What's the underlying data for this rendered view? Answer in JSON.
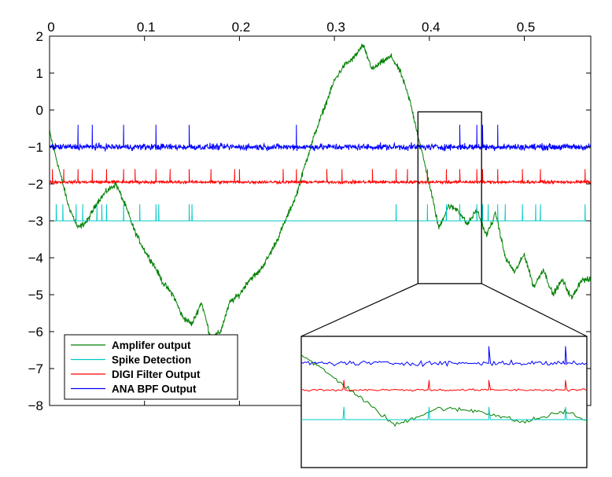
{
  "chart_data": {
    "type": "line",
    "title": "",
    "xlabel": "",
    "ylabel": "",
    "xlim": [
      0,
      0.57
    ],
    "ylim": [
      -8,
      2
    ],
    "x_ticks": [
      0,
      0.1,
      0.2,
      0.3,
      0.4,
      0.5
    ],
    "x_tick_labels": [
      "0",
      "0.1",
      "0.2",
      "0.3",
      "0.4",
      "0.5"
    ],
    "y_ticks": [
      2,
      1,
      0,
      -1,
      -2,
      -3,
      -4,
      -5,
      -6,
      -7,
      -8
    ],
    "y_tick_labels": [
      "2",
      "1",
      "0",
      "−1",
      "−2",
      "−3",
      "−4",
      "−5",
      "−6",
      "−7",
      "−8"
    ],
    "x_axis_position": "top",
    "grid": false,
    "legend_position": "bottom-left",
    "series": [
      {
        "name": "Amplifer output",
        "color": "#008000",
        "x": [
          0,
          0.01,
          0.02,
          0.03,
          0.04,
          0.05,
          0.06,
          0.07,
          0.08,
          0.09,
          0.1,
          0.11,
          0.12,
          0.13,
          0.14,
          0.15,
          0.16,
          0.17,
          0.18,
          0.19,
          0.2,
          0.21,
          0.22,
          0.23,
          0.24,
          0.25,
          0.26,
          0.27,
          0.28,
          0.29,
          0.3,
          0.31,
          0.32,
          0.33,
          0.34,
          0.35,
          0.36,
          0.37,
          0.38,
          0.39,
          0.4,
          0.41,
          0.42,
          0.43,
          0.44,
          0.45,
          0.46,
          0.47,
          0.48,
          0.49,
          0.5,
          0.51,
          0.52,
          0.53,
          0.54,
          0.55,
          0.56,
          0.57
        ],
        "values": [
          -0.6,
          -1.6,
          -2.6,
          -3.2,
          -3.0,
          -2.5,
          -2.2,
          -2.0,
          -2.6,
          -3.3,
          -3.8,
          -4.2,
          -4.7,
          -5.0,
          -5.6,
          -5.8,
          -5.2,
          -6.2,
          -6.0,
          -5.2,
          -5.0,
          -4.6,
          -4.4,
          -4.0,
          -3.5,
          -2.9,
          -2.3,
          -1.4,
          -0.6,
          0.1,
          0.8,
          1.2,
          1.4,
          1.75,
          1.1,
          1.3,
          1.45,
          1.0,
          0.2,
          -0.9,
          -2.0,
          -3.2,
          -2.6,
          -2.7,
          -3.1,
          -2.7,
          -3.4,
          -2.8,
          -4.0,
          -4.4,
          -3.9,
          -4.8,
          -4.3,
          -5.0,
          -4.6,
          -5.1,
          -4.6,
          -4.6
        ]
      },
      {
        "name": "Spike Detection",
        "color": "#00c8c8",
        "baseline": -3,
        "spike_height": 0.45,
        "spike_times": [
          0.007,
          0.014,
          0.028,
          0.035,
          0.05,
          0.055,
          0.06,
          0.078,
          0.095,
          0.112,
          0.115,
          0.147,
          0.15,
          0.365,
          0.398,
          0.418,
          0.432,
          0.45,
          0.456,
          0.462,
          0.472,
          0.48,
          0.498,
          0.512,
          0.517,
          0.564
        ]
      },
      {
        "name": "DIGI Filter Output",
        "color": "#ff0000",
        "baseline": -1.95,
        "spike_height": 0.35,
        "spike_times": [
          0.003,
          0.015,
          0.03,
          0.045,
          0.06,
          0.078,
          0.09,
          0.112,
          0.127,
          0.147,
          0.17,
          0.195,
          0.2,
          0.246,
          0.26,
          0.292,
          0.308,
          0.34,
          0.365,
          0.377,
          0.398,
          0.418,
          0.432,
          0.45,
          0.456,
          0.472,
          0.498,
          0.517,
          0.564
        ]
      },
      {
        "name": "ANA BPF Output",
        "color": "#0000ff",
        "baseline": -1.0,
        "spike_height": 0.6,
        "spike_times": [
          0.03,
          0.045,
          0.078,
          0.112,
          0.147,
          0.26,
          0.432,
          0.45,
          0.456,
          0.472
        ]
      }
    ],
    "inset": {
      "zoom_x_range": [
        0.388,
        0.455
      ],
      "zoom_y_range": [
        -4.7,
        -0.05
      ],
      "description": "zoomed view of boxed region"
    }
  }
}
